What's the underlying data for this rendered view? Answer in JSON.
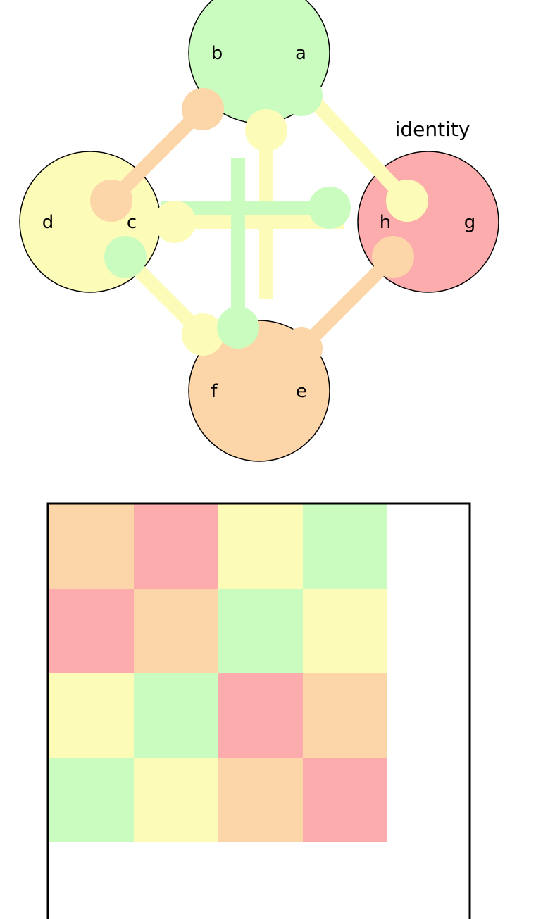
{
  "colors": {
    "peach": "#FCD5A8",
    "red": "#FCACAC",
    "yellow": "#FCFCB8",
    "green": "#CAFCC0",
    "outline": "#000000"
  },
  "diagram": {
    "highlight_label": "identity",
    "nodes": [
      {
        "id": "ab",
        "labels": [
          "b",
          "a"
        ],
        "color": "green"
      },
      {
        "id": "dc",
        "labels": [
          "d",
          "c"
        ],
        "color": "yellow"
      },
      {
        "id": "hg",
        "labels": [
          "h",
          "g"
        ],
        "color": "red"
      },
      {
        "id": "fe",
        "labels": [
          "f",
          "e"
        ],
        "color": "peach"
      }
    ]
  },
  "grid": {
    "rows": [
      [
        "peach",
        "red",
        "yellow",
        "green"
      ],
      [
        "red",
        "peach",
        "green",
        "yellow"
      ],
      [
        "yellow",
        "green",
        "red",
        "peach"
      ],
      [
        "green",
        "yellow",
        "peach",
        "red"
      ]
    ]
  }
}
